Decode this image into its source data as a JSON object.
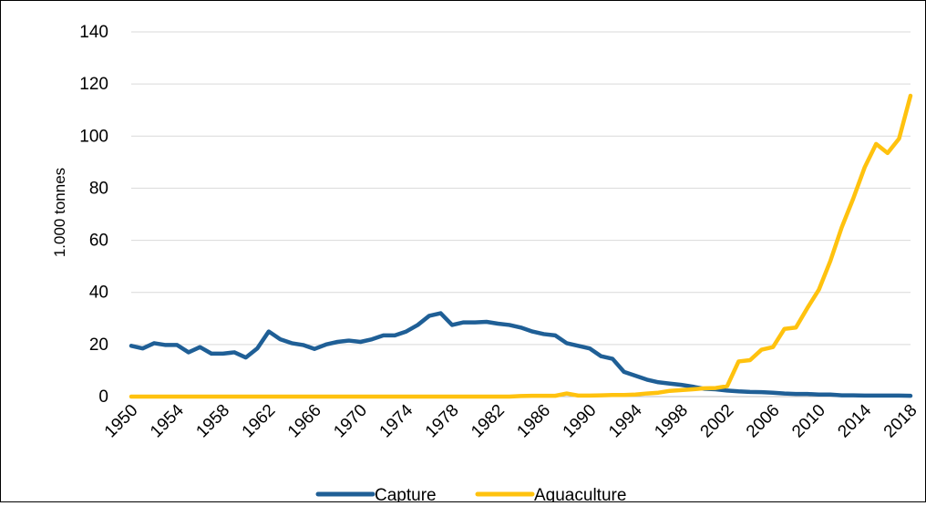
{
  "chart_data": {
    "type": "line",
    "title": "",
    "xlabel": "",
    "ylabel": "1.000 tonnes",
    "ylim": [
      0,
      140
    ],
    "yticks": [
      0,
      20,
      40,
      60,
      80,
      100,
      120,
      140
    ],
    "xlim": [
      1950,
      2018
    ],
    "xticks": [
      "1950",
      "1954",
      "1958",
      "1962",
      "1966",
      "1970",
      "1974",
      "1978",
      "1982",
      "1986",
      "1990",
      "1994",
      "1998",
      "2002",
      "2006",
      "2010",
      "2014",
      "2018"
    ],
    "grid": "horizontal",
    "legend": "bottom-center",
    "series": [
      {
        "name": "Capture",
        "color": "#1f5f96",
        "x": [
          1950,
          1951,
          1952,
          1953,
          1954,
          1955,
          1956,
          1957,
          1958,
          1959,
          1960,
          1961,
          1962,
          1963,
          1964,
          1965,
          1966,
          1967,
          1968,
          1969,
          1970,
          1971,
          1972,
          1973,
          1974,
          1975,
          1976,
          1977,
          1978,
          1979,
          1980,
          1981,
          1982,
          1983,
          1984,
          1985,
          1986,
          1987,
          1988,
          1989,
          1990,
          1991,
          1992,
          1993,
          1994,
          1995,
          1996,
          1997,
          1998,
          1999,
          2000,
          2001,
          2002,
          2003,
          2004,
          2005,
          2006,
          2007,
          2008,
          2009,
          2010,
          2011,
          2012,
          2013,
          2014,
          2015,
          2016,
          2017,
          2018
        ],
        "values": [
          19.5,
          18.5,
          20.5,
          19.8,
          19.8,
          17,
          19,
          16.5,
          16.5,
          17,
          15,
          18.5,
          25,
          22,
          20.5,
          19.8,
          18.3,
          20,
          21,
          21.5,
          21,
          22,
          23.5,
          23.5,
          25,
          27.5,
          31,
          32,
          27.5,
          28.5,
          28.5,
          28.7,
          28,
          27.5,
          26.5,
          25,
          24,
          23.5,
          20.5,
          19.5,
          18.5,
          15.5,
          14.5,
          9.5,
          8,
          6.5,
          5.5,
          5,
          4.5,
          3.8,
          3,
          2.8,
          2.3,
          2,
          1.8,
          1.7,
          1.5,
          1.2,
          1,
          1,
          0.8,
          0.8,
          0.5,
          0.5,
          0.4,
          0.4,
          0.4,
          0.4,
          0.3
        ]
      },
      {
        "name": "Aquaculture",
        "color": "#ffc20e",
        "x": [
          1950,
          1951,
          1952,
          1953,
          1954,
          1955,
          1956,
          1957,
          1958,
          1959,
          1960,
          1961,
          1962,
          1963,
          1964,
          1965,
          1966,
          1967,
          1968,
          1969,
          1970,
          1971,
          1972,
          1973,
          1974,
          1975,
          1976,
          1977,
          1978,
          1979,
          1980,
          1981,
          1982,
          1983,
          1984,
          1985,
          1986,
          1987,
          1988,
          1989,
          1990,
          1991,
          1992,
          1993,
          1994,
          1995,
          1996,
          1997,
          1998,
          1999,
          2000,
          2001,
          2002,
          2003,
          2004,
          2005,
          2006,
          2007,
          2008,
          2009,
          2010,
          2011,
          2012,
          2013,
          2014,
          2015,
          2016,
          2017,
          2018
        ],
        "values": [
          0,
          0,
          0,
          0,
          0,
          0,
          0,
          0,
          0,
          0,
          0,
          0,
          0,
          0,
          0,
          0,
          0,
          0,
          0,
          0,
          0,
          0,
          0,
          0,
          0,
          0,
          0,
          0,
          0,
          0,
          0,
          0,
          0,
          0,
          0.2,
          0.3,
          0.3,
          0.3,
          1.2,
          0.4,
          0.4,
          0.5,
          0.6,
          0.6,
          0.8,
          1.2,
          1.5,
          2.2,
          2.5,
          2.8,
          3.2,
          3.3,
          4,
          13.5,
          14,
          18,
          19,
          26,
          26.5,
          34,
          41,
          52,
          65,
          76,
          88,
          97,
          93.5,
          99,
          115.5
        ]
      }
    ]
  }
}
